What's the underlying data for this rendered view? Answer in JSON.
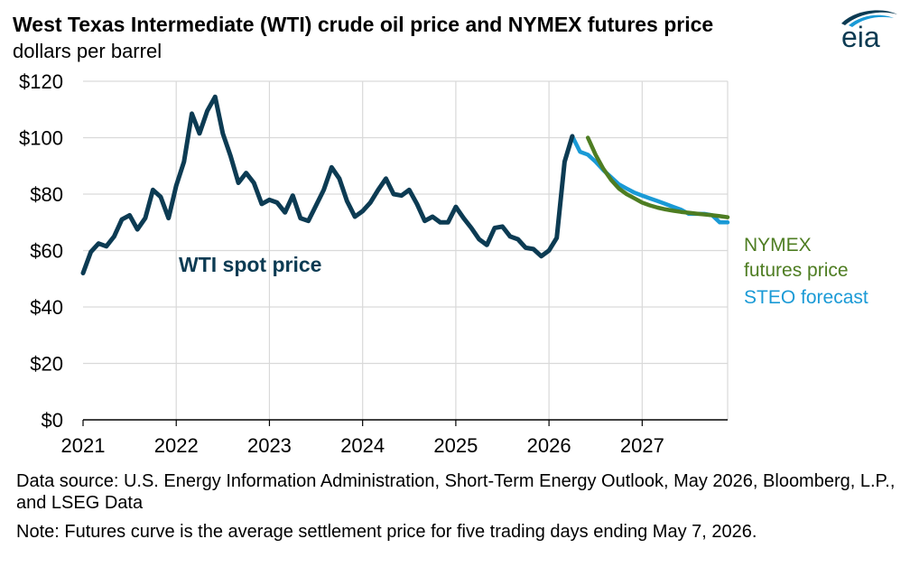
{
  "title": "West Texas Intermediate (WTI) crude oil price and NYMEX futures price",
  "subtitle": "dollars per barrel",
  "source_note": "Data source: U.S. Energy Information Administration, Short-Term Energy Outlook, May 2026, Bloomberg, L.P., and LSEG Data",
  "footnote": "Note: Futures curve is the average settlement price for five trading days ending May 7, 2026.",
  "logo_text": "eia",
  "colors": {
    "spot": "#0c3b53",
    "steo": "#1a9ad6",
    "nymex": "#4e7d22",
    "grid": "#d9d9d9",
    "axis": "#000000"
  },
  "chart_data": {
    "type": "line",
    "x_axis": {
      "ticks": [
        "2021",
        "2022",
        "2023",
        "2024",
        "2025",
        "2026",
        "2027"
      ],
      "range": [
        2021.0,
        2027.917
      ]
    },
    "y_axis": {
      "ticks": [
        "$0",
        "$20",
        "$40",
        "$60",
        "$80",
        "$100",
        "$120"
      ],
      "range": [
        0,
        120
      ]
    },
    "grid": true,
    "series": [
      {
        "name": "WTI spot price",
        "label_text": "WTI spot price",
        "color": "#0c3b53",
        "x": [
          2021.0,
          2021.083,
          2021.167,
          2021.25,
          2021.333,
          2021.417,
          2021.5,
          2021.583,
          2021.667,
          2021.75,
          2021.833,
          2021.917,
          2022.0,
          2022.083,
          2022.167,
          2022.25,
          2022.333,
          2022.417,
          2022.5,
          2022.583,
          2022.667,
          2022.75,
          2022.833,
          2022.917,
          2023.0,
          2023.083,
          2023.167,
          2023.25,
          2023.333,
          2023.417,
          2023.5,
          2023.583,
          2023.667,
          2023.75,
          2023.833,
          2023.917,
          2024.0,
          2024.083,
          2024.167,
          2024.25,
          2024.333,
          2024.417,
          2024.5,
          2024.583,
          2024.667,
          2024.75,
          2024.833,
          2024.917,
          2025.0,
          2025.083,
          2025.167,
          2025.25,
          2025.333,
          2025.417,
          2025.5,
          2025.583,
          2025.667,
          2025.75,
          2025.833,
          2025.917,
          2026.0,
          2026.083,
          2026.167,
          2026.25
        ],
        "y": [
          52,
          59.5,
          62.5,
          61.5,
          65,
          71,
          72.5,
          67.5,
          71.5,
          81.5,
          79,
          71.5,
          83,
          91.5,
          108.5,
          101.5,
          109.5,
          114.5,
          101.5,
          93.5,
          84,
          87.5,
          84,
          76.5,
          78,
          77,
          73.5,
          79.5,
          71.5,
          70.5,
          76,
          81.5,
          89.5,
          85.5,
          77.5,
          72,
          74,
          77,
          81.5,
          85.5,
          80,
          79.5,
          81.5,
          76.5,
          70.5,
          72,
          70,
          70,
          75.5,
          71.5,
          68,
          64,
          62,
          68,
          68.5,
          65,
          64,
          61,
          60.5,
          58,
          60,
          64.5,
          91.5,
          100.5
        ]
      },
      {
        "name": "STEO forecast",
        "label_text": "STEO forecast",
        "color": "#1a9ad6",
        "x": [
          2026.25,
          2026.333,
          2026.417,
          2026.5,
          2026.583,
          2026.667,
          2026.75,
          2026.833,
          2026.917,
          2027.0,
          2027.083,
          2027.167,
          2027.25,
          2027.333,
          2027.417,
          2027.5,
          2027.583,
          2027.667,
          2027.75,
          2027.833,
          2027.917
        ],
        "y": [
          100.5,
          95,
          94,
          91.5,
          88.5,
          86,
          83.5,
          82,
          80.5,
          79.5,
          78.5,
          77.5,
          76.5,
          75.5,
          74.5,
          73,
          73,
          73,
          72.5,
          70,
          70
        ]
      },
      {
        "name": "NYMEX futures price",
        "label_text": "NYMEX futures price",
        "label_lines": [
          "NYMEX",
          "futures price"
        ],
        "color": "#4e7d22",
        "x": [
          2026.417,
          2026.5,
          2026.583,
          2026.667,
          2026.75,
          2026.833,
          2026.917,
          2027.0,
          2027.083,
          2027.167,
          2027.25,
          2027.333,
          2027.417,
          2027.5,
          2027.583,
          2027.667,
          2027.75,
          2027.833,
          2027.917
        ],
        "y": [
          100,
          94,
          89,
          85,
          82,
          80,
          78.5,
          77,
          76,
          75.2,
          74.6,
          74.1,
          73.7,
          73.4,
          73.1,
          72.8,
          72.5,
          72.2,
          71.8
        ]
      }
    ]
  }
}
